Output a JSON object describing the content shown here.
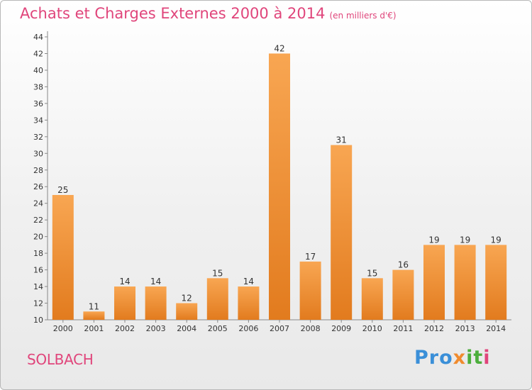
{
  "header": {
    "title": "Achats et Charges Externes 2000 à 2014",
    "unit": "(en milliers d'€)"
  },
  "footer": {
    "commune": "SOLBACH",
    "logo": "Proxiti",
    "logo_parts": [
      "Pro",
      "x",
      "it",
      "i"
    ]
  },
  "colors": {
    "title": "#e0457b",
    "bar_top": "#f8a652",
    "bar_bottom": "#e27b1e",
    "axis": "#888888"
  },
  "chart_data": {
    "type": "bar",
    "title": "Achats et Charges Externes 2000 à 2014",
    "categories": [
      "2000",
      "2001",
      "2002",
      "2003",
      "2004",
      "2005",
      "2006",
      "2007",
      "2008",
      "2009",
      "2010",
      "2011",
      "2012",
      "2013",
      "2014"
    ],
    "values": [
      25,
      11,
      14,
      14,
      12,
      15,
      14,
      42,
      17,
      31,
      15,
      16,
      19,
      19,
      19
    ],
    "ylim": [
      10,
      44
    ],
    "yticks": [
      10,
      12,
      14,
      16,
      18,
      20,
      22,
      24,
      26,
      28,
      30,
      32,
      34,
      36,
      38,
      40,
      42,
      44
    ],
    "grid": false,
    "legend": "none"
  }
}
